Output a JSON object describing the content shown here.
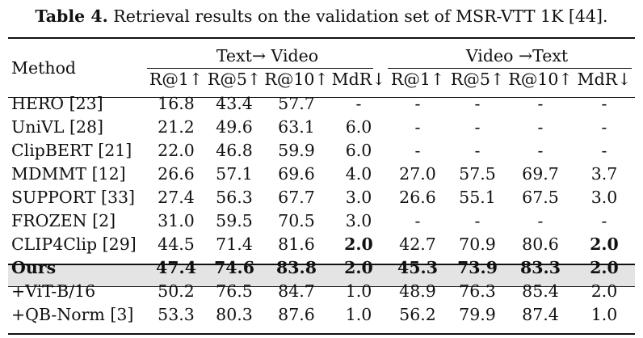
{
  "caption": {
    "label": "Table 4.",
    "text": "Retrieval results on the validation set of MSR-VTT 1K [44]."
  },
  "table": {
    "method_header": "Method",
    "group_headers": [
      "Text→ Video",
      "Video →Text"
    ],
    "columns": [
      "R@1↑",
      "R@5↑",
      "R@10↑",
      "MdR↓",
      "R@1↑",
      "R@5↑",
      "R@10↑",
      "MdR↓"
    ],
    "rows": [
      {
        "method": "HERO [23]",
        "values": [
          "16.8",
          "43.4",
          "57.7",
          "-",
          "-",
          "-",
          "-",
          "-"
        ]
      },
      {
        "method": "UniVL [28]",
        "values": [
          "21.2",
          "49.6",
          "63.1",
          "6.0",
          "-",
          "-",
          "-",
          "-"
        ]
      },
      {
        "method": "ClipBERT [21]",
        "values": [
          "22.0",
          "46.8",
          "59.9",
          "6.0",
          "-",
          "-",
          "-",
          "-"
        ]
      },
      {
        "method": "MDMMT [12]",
        "values": [
          "26.6",
          "57.1",
          "69.6",
          "4.0",
          "27.0",
          "57.5",
          "69.7",
          "3.7"
        ]
      },
      {
        "method": "SUPPORT [33]",
        "values": [
          "27.4",
          "56.3",
          "67.7",
          "3.0",
          "26.6",
          "55.1",
          "67.5",
          "3.0"
        ]
      },
      {
        "method": "FROZEN [2]",
        "values": [
          "31.0",
          "59.5",
          "70.5",
          "3.0",
          "-",
          "-",
          "-",
          "-"
        ]
      },
      {
        "method": "CLIP4Clip [29]",
        "values": [
          "44.5",
          "71.4",
          "81.6",
          "2.0",
          "42.7",
          "70.9",
          "80.6",
          "2.0"
        ]
      },
      {
        "method": "Ours",
        "values": [
          "47.4",
          "74.6",
          "83.8",
          "2.0",
          "45.3",
          "73.9",
          "83.3",
          "2.0"
        ]
      },
      {
        "method": "+ViT-B/16",
        "values": [
          "50.2",
          "76.5",
          "84.7",
          "1.0",
          "48.9",
          "76.3",
          "85.4",
          "2.0"
        ]
      },
      {
        "method": "+QB-Norm [3]",
        "values": [
          "53.3",
          "80.3",
          "87.6",
          "1.0",
          "56.2",
          "79.9",
          "87.4",
          "1.0"
        ]
      }
    ],
    "highlight_row_color": "#e4e4e4"
  }
}
